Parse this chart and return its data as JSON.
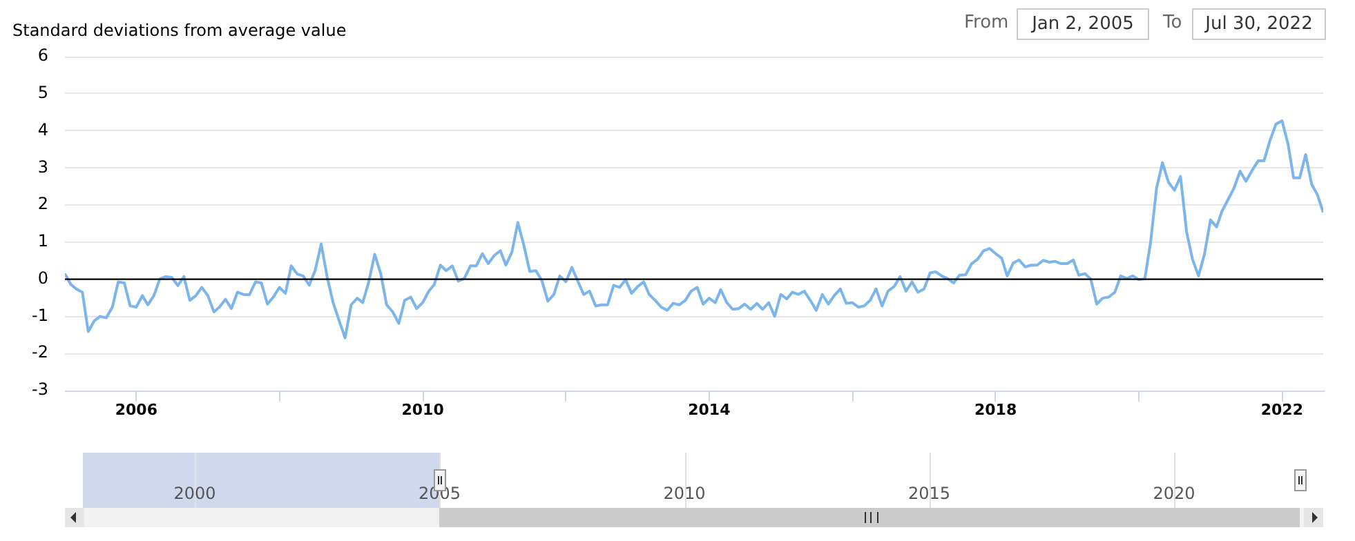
{
  "chart_data": {
    "type": "line",
    "ylabel": "Standard deviations from average value",
    "annotations": [
      "From",
      "Jan 2, 2005",
      "To",
      "Jul 30, 2022"
    ],
    "xlim": [
      "2005-01-02",
      "2022-07-30"
    ],
    "xticks": [
      "2006",
      {
        "value": "2008",
        "label": null
      },
      "2010",
      {
        "value": "2012",
        "label": null
      },
      "2014",
      {
        "value": "2016",
        "label": null
      },
      "2018",
      {
        "value": "2020",
        "label": null
      },
      "2022"
    ],
    "ylim": [
      -3,
      6
    ],
    "yticks": [
      -3,
      -2,
      -1,
      0,
      1,
      2,
      3,
      4,
      5,
      6
    ],
    "x2lim": [
      "1997-05-08",
      "2023-01-18"
    ],
    "x2ticks": [
      "2000",
      "2005",
      "2010",
      "2015",
      "2020"
    ],
    "grid": "y",
    "marker": "none",
    "line_style": "solid",
    "ref_lines": [
      {
        "axis": "y",
        "value": 0,
        "color": "#000000"
      }
    ],
    "series": [
      {
        "color": "#7cb5ec",
        "x": [
          "2005-01-02",
          "2005-02",
          "2005-03",
          "2005-04",
          "2005-05",
          "2005-06",
          "2005-07",
          "2005-08",
          "2005-09",
          "2005-10",
          "2005-11",
          "2005-12",
          "2006-01",
          "2006-02",
          "2006-03",
          "2006-04",
          "2006-05",
          "2006-06",
          "2006-07",
          "2006-08",
          "2006-09",
          "2006-10",
          "2006-11",
          "2006-12",
          "2007-01",
          "2007-02",
          "2007-03",
          "2007-04",
          "2007-05",
          "2007-06",
          "2007-07",
          "2007-08",
          "2007-09",
          "2007-10",
          "2007-11",
          "2007-12",
          "2008-01",
          "2008-02",
          "2008-03",
          "2008-04",
          "2008-05",
          "2008-06",
          "2008-07",
          "2008-08",
          "2008-09",
          "2008-10",
          "2008-11",
          "2008-12",
          "2009-01",
          "2009-02",
          "2009-03",
          "2009-04",
          "2009-05",
          "2009-06",
          "2009-07",
          "2009-08",
          "2009-09",
          "2009-10",
          "2009-11",
          "2009-12",
          "2010-01",
          "2010-02",
          "2010-03",
          "2010-04",
          "2010-05",
          "2010-06",
          "2010-07",
          "2010-08",
          "2010-09",
          "2010-10",
          "2010-11",
          "2010-12",
          "2011-01",
          "2011-02",
          "2011-03",
          "2011-04",
          "2011-05",
          "2011-06",
          "2011-07",
          "2011-08",
          "2011-09",
          "2011-10",
          "2011-11",
          "2011-12",
          "2012-01",
          "2012-02",
          "2012-03",
          "2012-04",
          "2012-05",
          "2012-06",
          "2012-07",
          "2012-08",
          "2012-09",
          "2012-10",
          "2012-11",
          "2012-12",
          "2013-01",
          "2013-02",
          "2013-03",
          "2013-04",
          "2013-05",
          "2013-06",
          "2013-07",
          "2013-08",
          "2013-09",
          "2013-10",
          "2013-11",
          "2013-12",
          "2014-01",
          "2014-02",
          "2014-03",
          "2014-04",
          "2014-05",
          "2014-06",
          "2014-07",
          "2014-08",
          "2014-09",
          "2014-10",
          "2014-11",
          "2014-12",
          "2015-01",
          "2015-02",
          "2015-03",
          "2015-04",
          "2015-05",
          "2015-06",
          "2015-07",
          "2015-08",
          "2015-09",
          "2015-10",
          "2015-11",
          "2015-12",
          "2016-01",
          "2016-02",
          "2016-03",
          "2016-04",
          "2016-05",
          "2016-06",
          "2016-07",
          "2016-08",
          "2016-09",
          "2016-10",
          "2016-11",
          "2016-12",
          "2017-01",
          "2017-02",
          "2017-03",
          "2017-04",
          "2017-05",
          "2017-06",
          "2017-07",
          "2017-08",
          "2017-09",
          "2017-10",
          "2017-11",
          "2017-12",
          "2018-01",
          "2018-02",
          "2018-03",
          "2018-04",
          "2018-05",
          "2018-06",
          "2018-07",
          "2018-08",
          "2018-09",
          "2018-10",
          "2018-11",
          "2018-12",
          "2019-01",
          "2019-02",
          "2019-03",
          "2019-04",
          "2019-05",
          "2019-06",
          "2019-07",
          "2019-08",
          "2019-09",
          "2019-10",
          "2019-11",
          "2019-12",
          "2020-01",
          "2020-02",
          "2020-03",
          "2020-04",
          "2020-05",
          "2020-06",
          "2020-07",
          "2020-08",
          "2020-09",
          "2020-10",
          "2020-11",
          "2020-12",
          "2021-01",
          "2021-02",
          "2021-03",
          "2021-04",
          "2021-05",
          "2021-06",
          "2021-07",
          "2021-08",
          "2021-09",
          "2021-10",
          "2021-11",
          "2021-12",
          "2022-01",
          "2022-02",
          "2022-03",
          "2022-04",
          "2022-05",
          "2022-06",
          "2022-07",
          "2022-07-30"
        ],
        "values": [
          0.15,
          -0.14,
          -0.26,
          -0.35,
          -1.41,
          -1.12,
          -1.0,
          -1.04,
          -0.75,
          -0.07,
          -0.1,
          -0.72,
          -0.75,
          -0.44,
          -0.69,
          -0.44,
          0.01,
          0.07,
          0.05,
          -0.17,
          0.07,
          -0.57,
          -0.44,
          -0.22,
          -0.44,
          -0.88,
          -0.75,
          -0.54,
          -0.79,
          -0.35,
          -0.41,
          -0.42,
          -0.07,
          -0.1,
          -0.67,
          -0.48,
          -0.22,
          -0.38,
          0.36,
          0.14,
          0.09,
          -0.16,
          0.23,
          0.95,
          0.05,
          -0.63,
          -1.12,
          -1.58,
          -0.69,
          -0.51,
          -0.63,
          -0.07,
          0.67,
          0.15,
          -0.69,
          -0.88,
          -1.19,
          -0.57,
          -0.48,
          -0.79,
          -0.63,
          -0.32,
          -0.14,
          0.38,
          0.23,
          0.36,
          -0.05,
          0.02,
          0.36,
          0.36,
          0.69,
          0.42,
          0.64,
          0.77,
          0.38,
          0.73,
          1.53,
          0.91,
          0.21,
          0.23,
          -0.04,
          -0.59,
          -0.41,
          0.09,
          -0.07,
          0.32,
          -0.04,
          -0.41,
          -0.32,
          -0.72,
          -0.69,
          -0.69,
          -0.16,
          -0.22,
          -0.01,
          -0.38,
          -0.2,
          -0.07,
          -0.41,
          -0.57,
          -0.75,
          -0.84,
          -0.65,
          -0.69,
          -0.57,
          -0.32,
          -0.22,
          -0.67,
          -0.51,
          -0.63,
          -0.28,
          -0.63,
          -0.81,
          -0.79,
          -0.67,
          -0.81,
          -0.65,
          -0.81,
          -0.63,
          -1.0,
          -0.41,
          -0.53,
          -0.35,
          -0.41,
          -0.32,
          -0.57,
          -0.84,
          -0.41,
          -0.67,
          -0.44,
          -0.26,
          -0.65,
          -0.63,
          -0.75,
          -0.72,
          -0.57,
          -0.26,
          -0.72,
          -0.32,
          -0.2,
          0.07,
          -0.32,
          -0.07,
          -0.35,
          -0.26,
          0.17,
          0.2,
          0.09,
          0.02,
          -0.1,
          0.11,
          0.12,
          0.42,
          0.54,
          0.77,
          0.83,
          0.69,
          0.57,
          0.09,
          0.44,
          0.52,
          0.33,
          0.38,
          0.38,
          0.51,
          0.46,
          0.48,
          0.42,
          0.42,
          0.52,
          0.11,
          0.15,
          0.01,
          -0.67,
          -0.51,
          -0.48,
          -0.35,
          0.09,
          0.02,
          0.09,
          -0.01,
          0.01,
          0.98,
          2.46,
          3.14,
          2.61,
          2.4,
          2.77,
          1.28,
          0.54,
          0.09,
          0.67,
          1.6,
          1.41,
          1.84,
          2.15,
          2.46,
          2.91,
          2.64,
          2.93,
          3.19,
          3.19,
          3.75,
          4.18,
          4.27,
          3.63,
          2.73,
          2.73,
          3.36,
          2.56,
          2.27,
          1.8
        ]
      }
    ]
  }
}
